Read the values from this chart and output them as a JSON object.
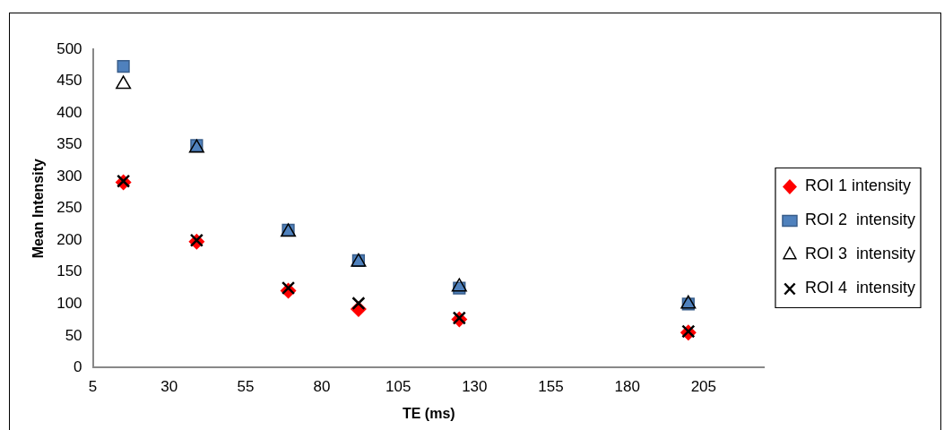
{
  "chart_data": {
    "type": "scatter",
    "xlabel": "TE (ms)",
    "ylabel": "Mean Intensity",
    "x": [
      15,
      39,
      69,
      92,
      125,
      200
    ],
    "series": [
      {
        "name": "ROI 1 intensity",
        "color": "#ff0000",
        "marker": "diamond",
        "values": [
          291,
          198,
          121,
          92,
          76,
          55
        ]
      },
      {
        "name": "ROI 2  intensity",
        "color": "#4f81bd",
        "marker": "square",
        "values": [
          473,
          349,
          216,
          168,
          125,
          100
        ]
      },
      {
        "name": "ROI 3  intensity",
        "color": "#000000",
        "marker": "triangle",
        "values": [
          445,
          345,
          213,
          166,
          127,
          100
        ]
      },
      {
        "name": "ROI 4  intensity",
        "color": "#000000",
        "marker": "cross",
        "values": [
          293,
          200,
          125,
          101,
          78,
          57
        ]
      }
    ],
    "xlim": [
      5,
      225
    ],
    "xticks": [
      5,
      30,
      55,
      80,
      105,
      130,
      155,
      180,
      205
    ],
    "ylim": [
      0,
      500
    ],
    "yticks": [
      0,
      50,
      100,
      150,
      200,
      250,
      300,
      350,
      400,
      450,
      500
    ],
    "grid": false,
    "legend": "right"
  }
}
